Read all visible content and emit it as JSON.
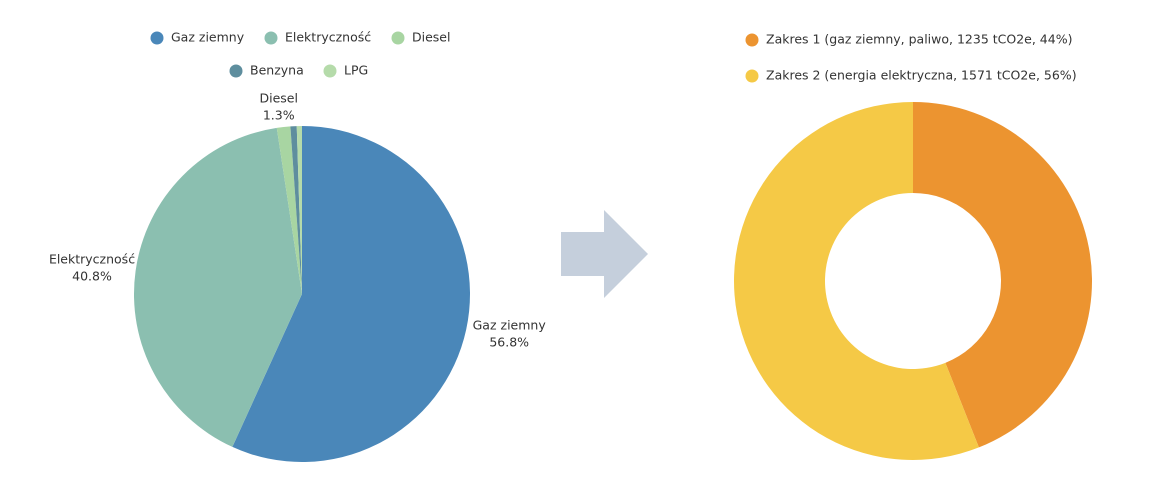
{
  "chart_data": [
    {
      "type": "pie",
      "categories": [
        "Gaz ziemny",
        "Elektryczność",
        "Diesel",
        "Benzyna",
        "LPG"
      ],
      "values": [
        56.8,
        40.8,
        1.3,
        0.6,
        0.5
      ],
      "value_labels": [
        "56.8%",
        "40.8%",
        "1.3%",
        null,
        null
      ],
      "colors": [
        "#4a87b9",
        "#8bbfb0",
        "#a8d5a2",
        "#5e8e9e",
        "#b5dbaa"
      ]
    },
    {
      "type": "donut",
      "categories": [
        "Zakres 1 (gaz ziemny, paliwo, 1235 tCO2e, 44%)",
        "Zakres 2 (energia elektryczna, 1571 tCO2e, 56%)"
      ],
      "values": [
        44,
        56
      ],
      "colors": [
        "#ec9430",
        "#f5c946"
      ]
    }
  ]
}
